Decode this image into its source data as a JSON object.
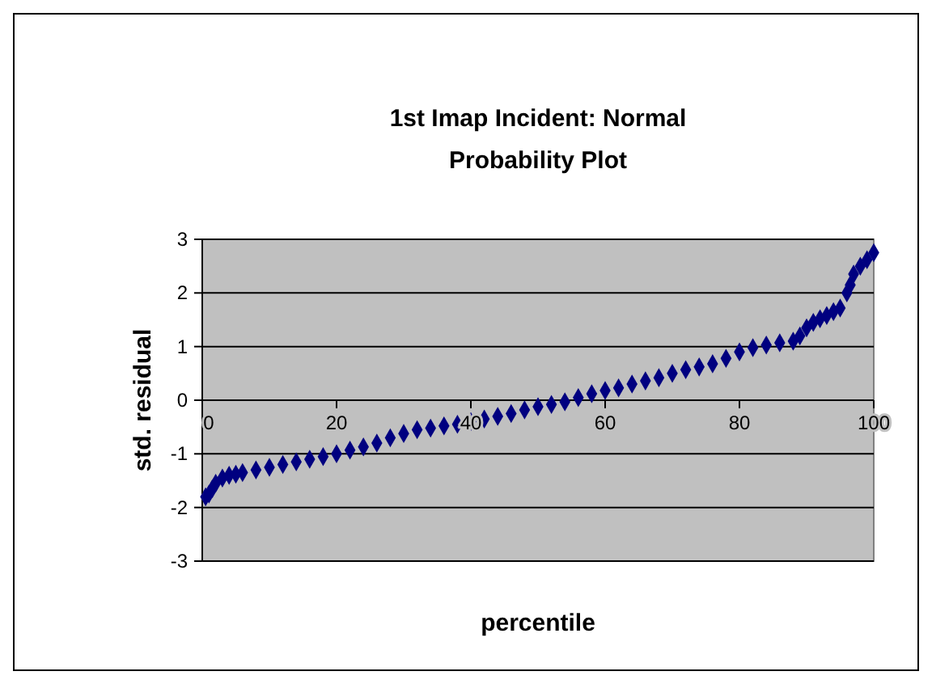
{
  "chart_data": {
    "type": "scatter",
    "title": "1st Imap Incident: Normal Probability Plot",
    "xlabel": "percentile",
    "ylabel": "std. residual",
    "xlim": [
      0,
      100
    ],
    "xticks": [
      0,
      20,
      40,
      60,
      80,
      100
    ],
    "ylim": [
      -3,
      3
    ],
    "yticks": [
      -3,
      -2,
      -1,
      0,
      1,
      2,
      3
    ],
    "grid": "y",
    "marker": "diamond",
    "series": [
      {
        "color": "#000080",
        "x": [
          0.5,
          1,
          1.5,
          2,
          3,
          4,
          5,
          6,
          8,
          10,
          12,
          14,
          16,
          18,
          20,
          22,
          24,
          26,
          28,
          30,
          32,
          34,
          36,
          38,
          40,
          42,
          44,
          46,
          48,
          50,
          52,
          54,
          56,
          58,
          60,
          62,
          64,
          66,
          68,
          70,
          72,
          74,
          76,
          78,
          80,
          82,
          84,
          86,
          88,
          89,
          90,
          91,
          92,
          93,
          94,
          95,
          96,
          96.5,
          97,
          98,
          99,
          100
        ],
        "values": [
          -1.8,
          -1.75,
          -1.65,
          -1.55,
          -1.45,
          -1.4,
          -1.38,
          -1.35,
          -1.3,
          -1.25,
          -1.2,
          -1.15,
          -1.1,
          -1.05,
          -1.0,
          -0.93,
          -0.87,
          -0.8,
          -0.7,
          -0.62,
          -0.55,
          -0.52,
          -0.48,
          -0.45,
          -0.4,
          -0.35,
          -0.3,
          -0.25,
          -0.18,
          -0.12,
          -0.08,
          -0.03,
          0.05,
          0.12,
          0.18,
          0.23,
          0.3,
          0.36,
          0.42,
          0.5,
          0.57,
          0.62,
          0.68,
          0.78,
          0.9,
          0.98,
          1.03,
          1.07,
          1.1,
          1.2,
          1.35,
          1.45,
          1.52,
          1.58,
          1.65,
          1.72,
          2.0,
          2.15,
          2.35,
          2.5,
          2.62,
          2.75
        ]
      }
    ]
  }
}
